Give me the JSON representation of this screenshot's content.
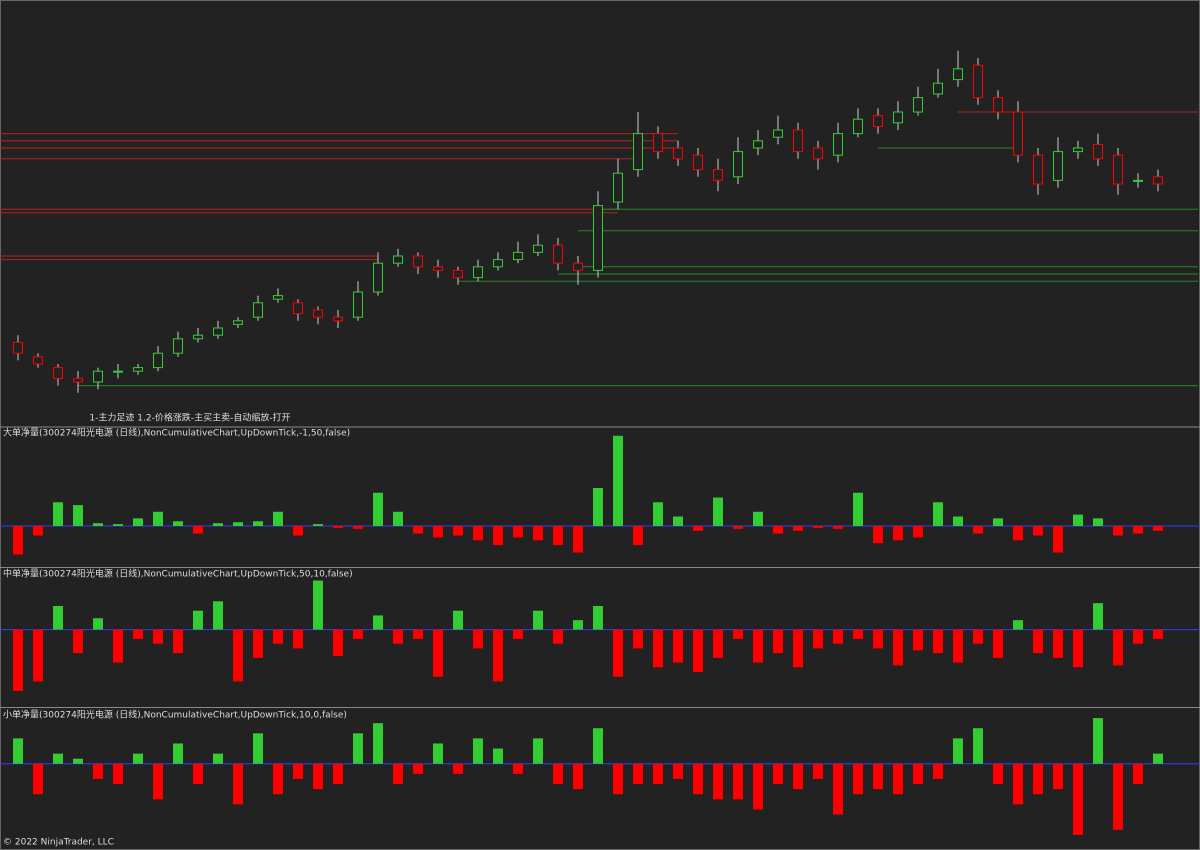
{
  "chart_data": [
    {
      "type": "candlestick",
      "title": "1-主力足迹 1.2-价格涨跌-主买主卖-自动缩放-打开",
      "ylim": [
        0,
        100
      ],
      "up_color": "#32cd32",
      "down_color": "#ff0000",
      "open": [
        16,
        12,
        9,
        6,
        5,
        8,
        8,
        9,
        13,
        17,
        18,
        21,
        23,
        28,
        27,
        25,
        23,
        23,
        30,
        38,
        40,
        37,
        36,
        34,
        37,
        39,
        41,
        43,
        38,
        36,
        55,
        64,
        74,
        70,
        68,
        64,
        62,
        70,
        73,
        75,
        70,
        68,
        74,
        79,
        77,
        80,
        85,
        89,
        93,
        84,
        80,
        68,
        61,
        69,
        71,
        68,
        61,
        62
      ],
      "high": [
        18,
        13,
        10,
        8,
        9,
        10,
        10,
        15,
        19,
        20,
        22,
        23,
        29,
        31,
        28,
        26,
        25,
        33,
        41,
        42,
        41,
        39,
        37,
        39,
        41,
        44,
        46,
        45,
        40,
        58,
        67,
        80,
        76,
        72,
        70,
        67,
        73,
        75,
        79,
        77,
        72,
        77,
        81,
        81,
        83,
        87,
        92,
        97,
        95,
        86,
        83,
        70,
        73,
        72,
        74,
        70,
        63,
        64
      ],
      "low": [
        11,
        9,
        4,
        2,
        3,
        6,
        7,
        8,
        12,
        16,
        17,
        20,
        22,
        27,
        22,
        21,
        20,
        22,
        29,
        37,
        35,
        34,
        32,
        33,
        36,
        38,
        40,
        36,
        32,
        34,
        53,
        62,
        67,
        65,
        62,
        58,
        60,
        68,
        71,
        67,
        64,
        66,
        73,
        74,
        75,
        79,
        84,
        87,
        82,
        78,
        66,
        57,
        59,
        67,
        65,
        57,
        59,
        58
      ],
      "close": [
        13,
        10,
        6,
        5,
        8,
        8,
        9,
        13,
        17,
        18,
        20,
        22,
        27,
        29,
        24,
        23,
        22,
        30,
        38,
        40,
        37,
        36,
        34,
        37,
        39,
        41,
        43,
        38,
        36,
        54,
        63,
        74,
        69,
        67,
        64,
        61,
        69,
        72,
        75,
        69,
        67,
        74,
        78,
        76,
        80,
        84,
        88,
        92,
        84,
        80,
        68,
        60,
        69,
        70,
        67,
        60,
        61,
        60
      ],
      "levels": [
        {
          "value": 74,
          "start": 0,
          "end": 33,
          "color": "#b22222"
        },
        {
          "value": 72,
          "start": 0,
          "end": 33,
          "color": "#b22222"
        },
        {
          "value": 70,
          "start": 0,
          "end": 33,
          "color": "#b22222"
        },
        {
          "value": 67,
          "start": 0,
          "end": 31,
          "color": "#b22222"
        },
        {
          "value": 53,
          "start": 0,
          "end": 30,
          "color": "#b22222"
        },
        {
          "value": 52,
          "start": 0,
          "end": 30,
          "color": "#b22222"
        },
        {
          "value": 40,
          "start": 0,
          "end": 18,
          "color": "#b22222"
        },
        {
          "value": 39,
          "start": 0,
          "end": 18,
          "color": "#b22222"
        },
        {
          "value": 80,
          "start": 47,
          "end": 59,
          "color": "#b22222"
        },
        {
          "value": 4,
          "start": 3,
          "end": 59,
          "color": "#228b22"
        },
        {
          "value": 53,
          "start": 29,
          "end": 59,
          "color": "#228b22"
        },
        {
          "value": 47,
          "start": 28,
          "end": 59,
          "color": "#228b22"
        },
        {
          "value": 37,
          "start": 28,
          "end": 59,
          "color": "#228b22"
        },
        {
          "value": 35,
          "start": 27,
          "end": 59,
          "color": "#228b22"
        },
        {
          "value": 33,
          "start": 22,
          "end": 59,
          "color": "#228b22"
        },
        {
          "value": 70,
          "start": 43,
          "end": 50,
          "color": "#228b22"
        }
      ]
    },
    {
      "type": "bar",
      "title": "大单净量(300274阳光电源 (日线),NonCumulativeChart,UpDownTick,-1,50,false)",
      "ylim": [
        -40,
        100
      ],
      "up_color": "#32cd32",
      "down_color": "#ff0000",
      "values": [
        -30,
        -10,
        25,
        22,
        3,
        2,
        8,
        15,
        5,
        -8,
        3,
        4,
        5,
        15,
        -10,
        2,
        -2,
        -3,
        35,
        15,
        -8,
        -12,
        -10,
        -15,
        -20,
        -12,
        -15,
        -20,
        -28,
        40,
        95,
        -20,
        25,
        10,
        -5,
        30,
        -3,
        15,
        -8,
        -5,
        -2,
        -3,
        35,
        -18,
        -15,
        -12,
        25,
        10,
        -8,
        8,
        -15,
        -10,
        -28,
        12,
        8,
        -10,
        -8,
        -5
      ]
    },
    {
      "type": "bar",
      "title": "中单净量(300274阳光电源 (日线),NonCumulativeChart,UpDownTick,50,10,false)",
      "ylim": [
        -80,
        60
      ],
      "up_color": "#32cd32",
      "down_color": "#ff0000",
      "values": [
        -65,
        -55,
        25,
        -25,
        12,
        -35,
        -10,
        -15,
        -25,
        20,
        30,
        -55,
        -30,
        -15,
        -20,
        52,
        -28,
        -10,
        15,
        -15,
        -10,
        -50,
        20,
        -20,
        -55,
        -10,
        20,
        -15,
        10,
        25,
        -50,
        -20,
        -40,
        -35,
        -45,
        -30,
        -10,
        -35,
        -25,
        -40,
        -20,
        -15,
        -10,
        -20,
        -38,
        -22,
        -25,
        -35,
        -15,
        -30,
        10,
        -25,
        -30,
        -40,
        28,
        -38,
        -15,
        -10
      ]
    },
    {
      "type": "bar",
      "title": "小单净量(300274阳光电源 (日线),NonCumulativeChart,UpDownTick,10,0,false)",
      "ylim": [
        -80,
        50
      ],
      "up_color": "#32cd32",
      "down_color": "#ff0000",
      "values": [
        25,
        -30,
        10,
        5,
        -15,
        -20,
        10,
        -35,
        20,
        -20,
        10,
        -40,
        30,
        -30,
        -15,
        -25,
        -20,
        30,
        40,
        -20,
        -10,
        20,
        -10,
        25,
        15,
        -10,
        25,
        -20,
        -25,
        35,
        -30,
        -20,
        -20,
        -15,
        -30,
        -35,
        -35,
        -45,
        -20,
        -25,
        -15,
        -50,
        -30,
        -25,
        -30,
        -20,
        -15,
        25,
        35,
        -20,
        -40,
        -30,
        -25,
        -70,
        45,
        -65,
        -20,
        10
      ]
    }
  ],
  "footer": "© 2022 NinjaTrader, LLC"
}
